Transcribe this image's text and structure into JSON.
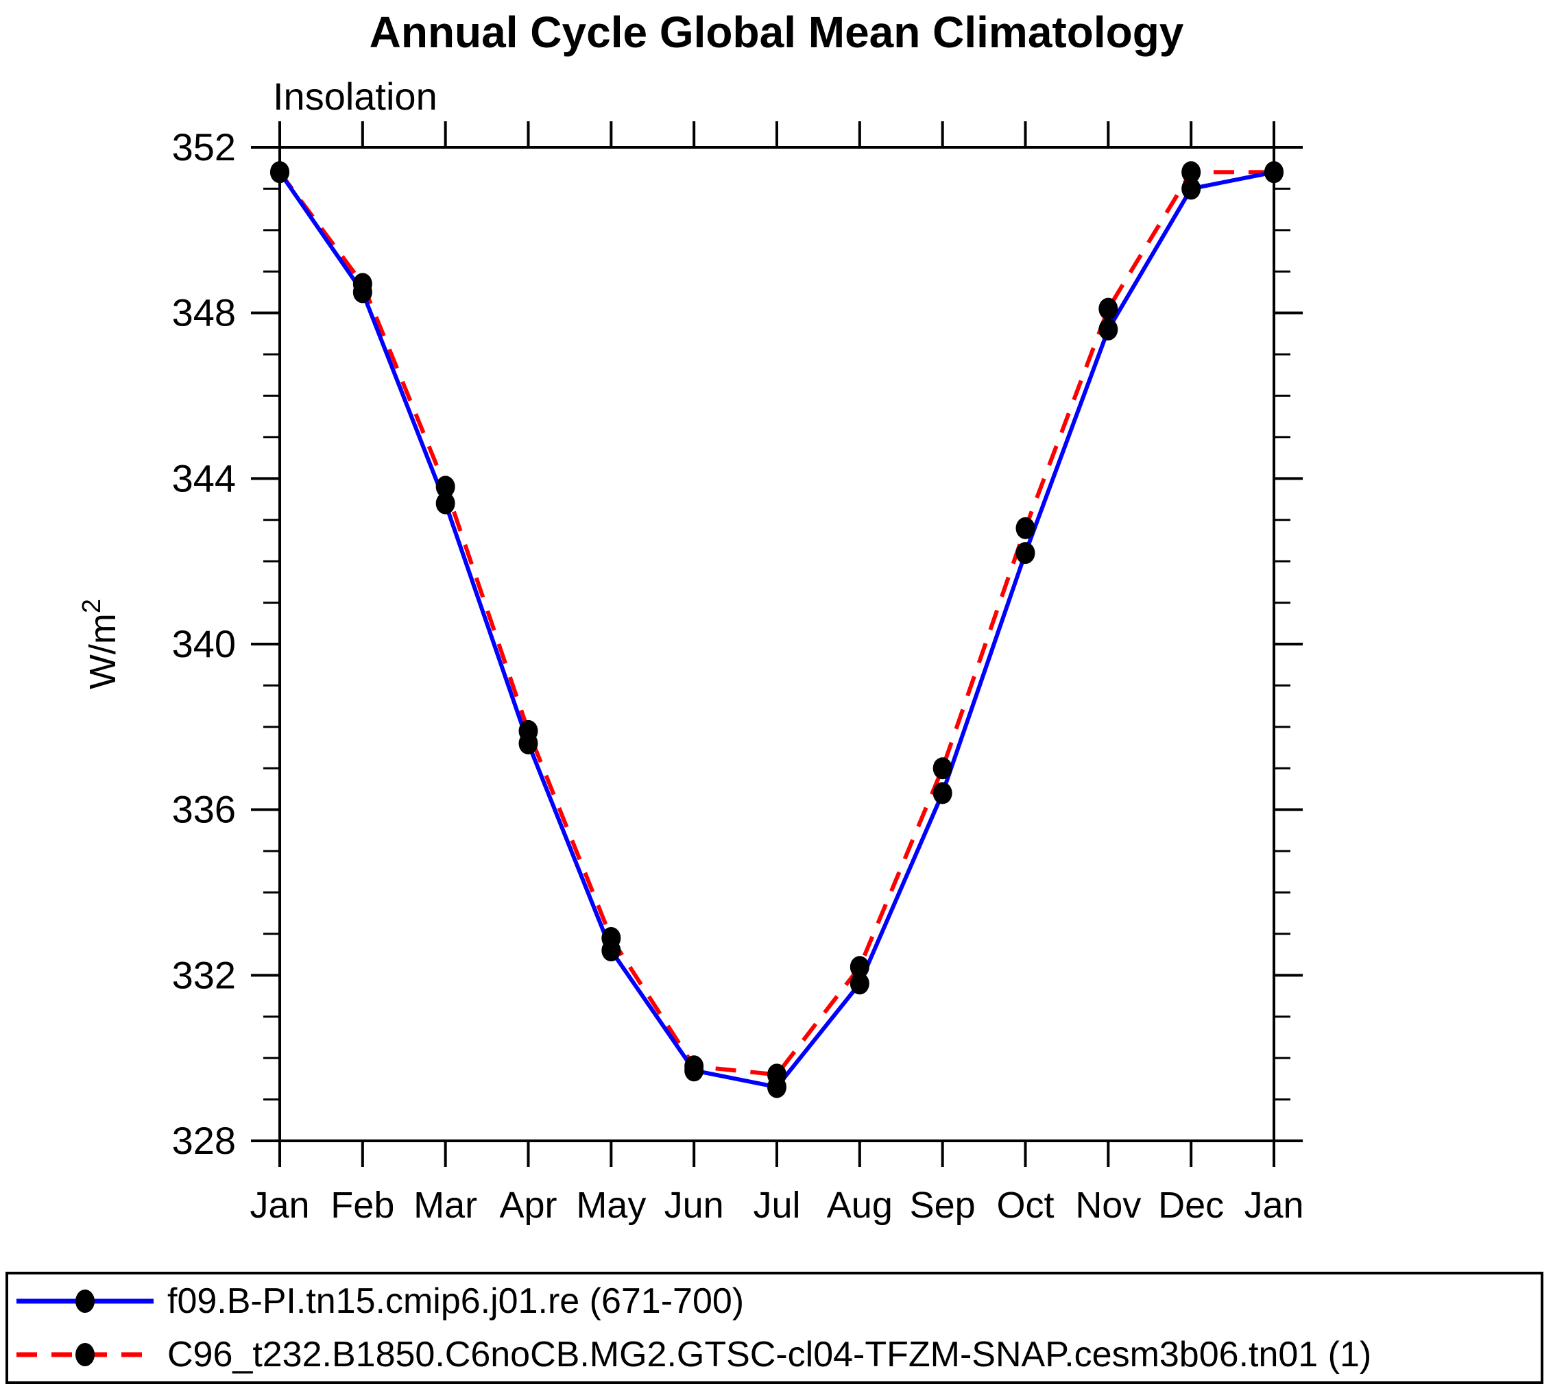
{
  "figure": {
    "title": "Annual Cycle Global Mean Climatology",
    "subtitle": "Insolation"
  },
  "chart_data": {
    "type": "line",
    "title": "Annual Cycle Global Mean Climatology",
    "subtitle": "Insolation",
    "xlabel": "",
    "ylabel": "W/m²",
    "categories": [
      "Jan",
      "Feb",
      "Mar",
      "Apr",
      "May",
      "Jun",
      "Jul",
      "Aug",
      "Sep",
      "Oct",
      "Nov",
      "Dec",
      "Jan"
    ],
    "ylim": [
      328,
      352
    ],
    "y_major_ticks": [
      328,
      332,
      336,
      340,
      344,
      348,
      352
    ],
    "y_minor_step": 1,
    "grid": false,
    "legend_position": "bottom-outside-box",
    "axis_color": "#000000",
    "background_color": "#ffffff",
    "series": [
      {
        "name": "f09.B-PI.tn15.cmip6.j01.re (671-700)",
        "color": "#0000ff",
        "line_style": "solid",
        "marker": "filled-circle",
        "marker_color": "#000000",
        "values": [
          351.4,
          348.5,
          343.4,
          337.6,
          332.6,
          329.7,
          329.3,
          331.8,
          336.4,
          342.2,
          347.6,
          351.0,
          351.4
        ]
      },
      {
        "name": "C96_t232.B1850.C6noCB.MG2.GTSC-cl04-TFZM-SNAP.cesm3b06.tn01 (1)",
        "color": "#ff0000",
        "line_style": "dashed",
        "marker": "filled-circle",
        "marker_color": "#000000",
        "values": [
          351.4,
          348.7,
          343.8,
          337.9,
          332.9,
          329.8,
          329.6,
          332.2,
          337.0,
          342.8,
          348.1,
          351.4,
          351.4
        ]
      }
    ]
  }
}
